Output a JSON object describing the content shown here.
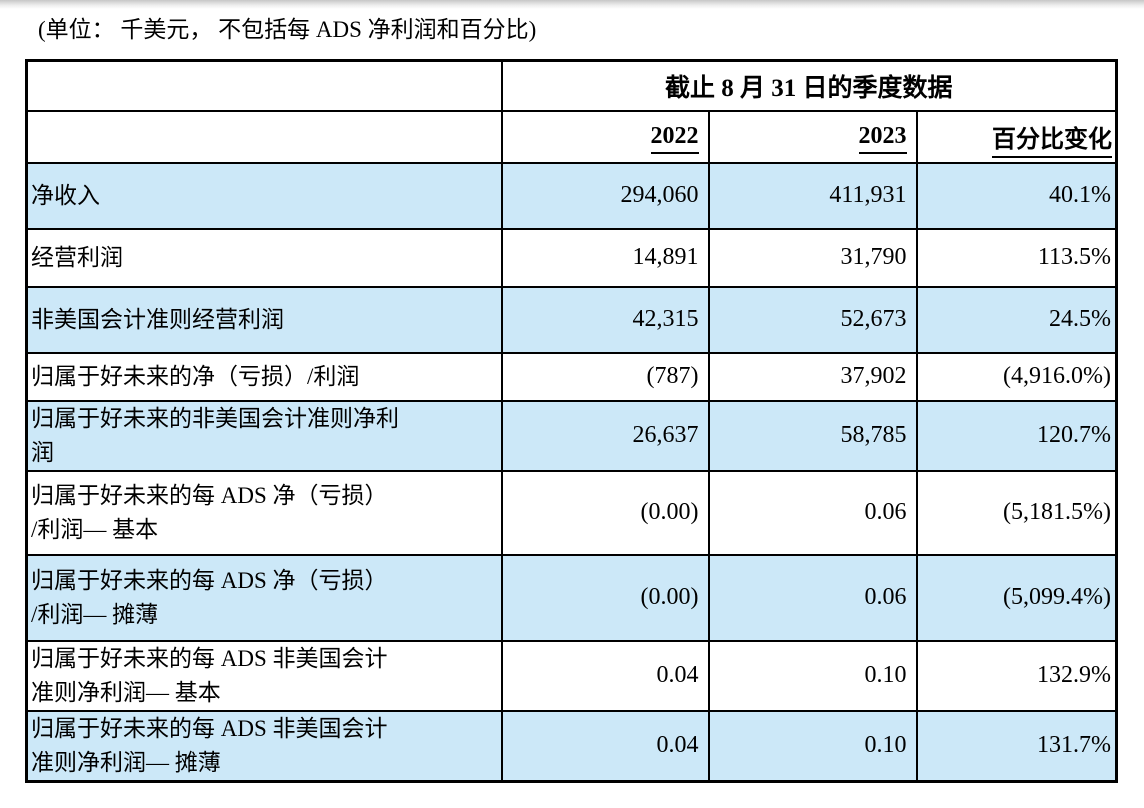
{
  "caption": "(单位： 千美元， 不包括每 ADS 净利润和百分比)",
  "table": {
    "span_header": "截止 8 月 31 日的季度数据",
    "columns": [
      "2022",
      "2023",
      "百分比变化"
    ],
    "rows": [
      {
        "label": "净收入",
        "values": [
          "294,060",
          "411,931",
          "40.1%"
        ]
      },
      {
        "label": "经营利润",
        "values": [
          "14,891",
          "31,790",
          "113.5%"
        ]
      },
      {
        "label": "非美国会计准则经营利润",
        "values": [
          "42,315",
          "52,673",
          "24.5%"
        ]
      },
      {
        "label": "归属于好未来的净（亏损）/利润",
        "values": [
          "(787)",
          "37,902",
          "(4,916.0%)"
        ]
      },
      {
        "label": "归属于好未来的非美国会计准则净利\n润",
        "values": [
          "26,637",
          "58,785",
          "120.7%"
        ]
      },
      {
        "label": "归属于好未来的每 ADS 净（亏损）\n/利润— 基本",
        "values": [
          "(0.00)",
          "0.06",
          "(5,181.5%)"
        ]
      },
      {
        "label": "归属于好未来的每 ADS 净（亏损）\n/利润— 摊薄",
        "values": [
          "(0.00)",
          "0.06",
          "(5,099.4%)"
        ]
      },
      {
        "label": "归属于好未来的每 ADS 非美国会计\n准则净利润— 基本",
        "values": [
          "0.04",
          "0.10",
          "132.9%"
        ]
      },
      {
        "label": "归属于好未来的每 ADS 非美国会计\n准则净利润— 摊薄",
        "values": [
          "0.04",
          "0.10",
          "131.7%"
        ]
      }
    ]
  },
  "colors": {
    "row_highlight": "#cce8f8",
    "border": "#000000",
    "background": "#ffffff"
  }
}
